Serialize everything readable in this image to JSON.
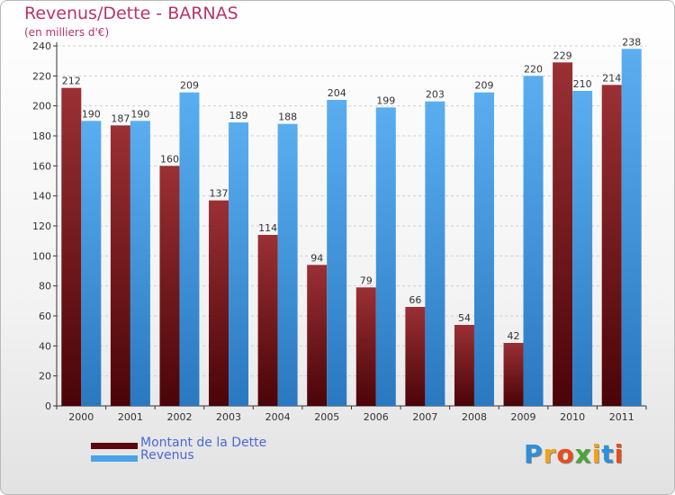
{
  "title": "Revenus/Dette - BARNAS",
  "subtitle": "(en milliers d'€)",
  "logo": {
    "letters": [
      {
        "ch": "P",
        "color": "#2f8fd8"
      },
      {
        "ch": "r",
        "color": "#f0a21c"
      },
      {
        "ch": "o",
        "color": "#e74c1c"
      },
      {
        "ch": "x",
        "color": "#4aa53a"
      },
      {
        "ch": "i",
        "color": "#f0a21c"
      },
      {
        "ch": "t",
        "color": "#2f8fd8"
      },
      {
        "ch": "i",
        "color": "#e74c1c"
      }
    ]
  },
  "chart_data": {
    "type": "bar",
    "title": "Revenus/Dette - BARNAS",
    "subtitle": "(en milliers d'€)",
    "categories": [
      "2000",
      "2001",
      "2002",
      "2003",
      "2004",
      "2005",
      "2006",
      "2007",
      "2008",
      "2009",
      "2010",
      "2011"
    ],
    "series": [
      {
        "name": "Montant de la Dette",
        "color": "#7a1a1e",
        "values": [
          212,
          187,
          160,
          137,
          114,
          94,
          79,
          66,
          54,
          42,
          229,
          214
        ]
      },
      {
        "name": "Revenus",
        "color": "#4aa3e6",
        "values": [
          190,
          190,
          209,
          189,
          188,
          204,
          199,
          203,
          209,
          220,
          210,
          238
        ]
      }
    ],
    "yticks": [
      0,
      20,
      40,
      60,
      80,
      100,
      120,
      140,
      160,
      180,
      200,
      220,
      240
    ],
    "ylim": [
      0,
      240
    ],
    "grid": true,
    "legend_position": "bottom-left"
  }
}
